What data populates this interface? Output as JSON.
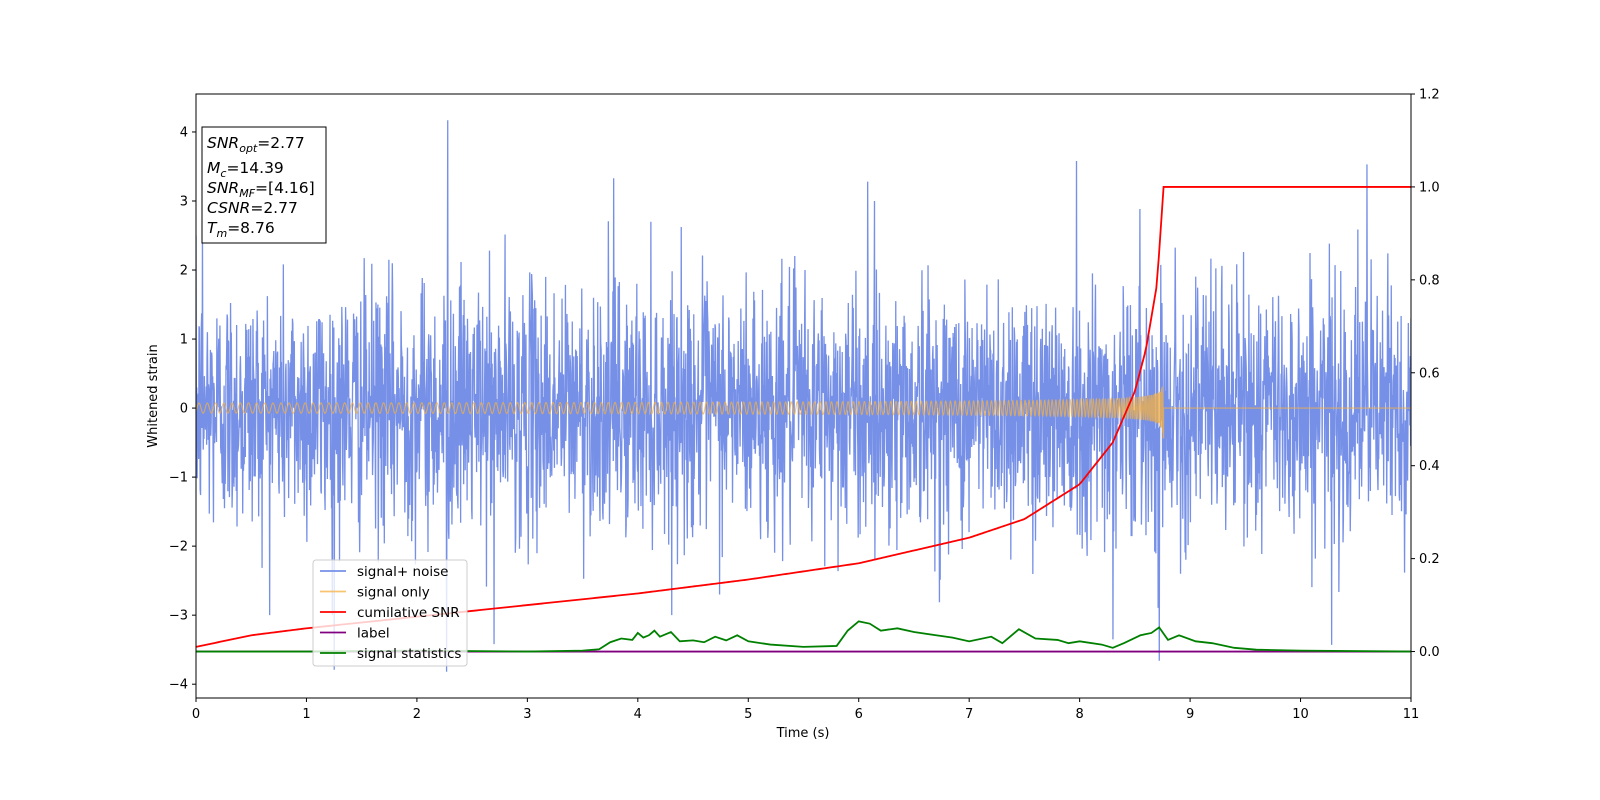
{
  "chart_data": {
    "type": "line",
    "xlabel": "Time (s)",
    "ylabel_left": "Whitened strain",
    "ylabel_right": "",
    "xlim": [
      0,
      11
    ],
    "ylim_left": [
      -4.2,
      4.55
    ],
    "ylim_right": [
      -0.1,
      1.2
    ],
    "x_ticks": [
      "0",
      "1",
      "2",
      "3",
      "4",
      "5",
      "6",
      "7",
      "8",
      "9",
      "10",
      "11"
    ],
    "y_left_ticks": [
      "4",
      "3",
      "2",
      "1",
      "0",
      "−1",
      "−2",
      "−3",
      "−4"
    ],
    "y_right_ticks": [
      "1.2",
      "1.0",
      "0.8",
      "0.6",
      "0.4",
      "0.2",
      "0.0"
    ],
    "grid": false,
    "legend_position": "lower-left",
    "info_box": {
      "lines": [
        {
          "sym": "SNR",
          "sub": "opt",
          "text": "=2.77"
        },
        {
          "sym": "M",
          "sub": "c",
          "text": "=14.39"
        },
        {
          "sym": "SNR",
          "sub": "MF",
          "text": "=[4.16]"
        },
        {
          "sym": "CSNR",
          "sub": "",
          "text": "=2.77"
        },
        {
          "sym": "T",
          "sub": "m",
          "text": "=8.76"
        }
      ]
    },
    "series": [
      {
        "name": "signal+ noise",
        "axis": "left",
        "color": "#6f8ae6",
        "kind": "noise",
        "sigma": 0.9,
        "spikes": [
          {
            "x": 2.28,
            "y": 4.17
          },
          {
            "x": 7.97,
            "y": 3.58
          },
          {
            "x": 10.6,
            "y": 3.53
          },
          {
            "x": 3.78,
            "y": 3.33
          },
          {
            "x": 6.08,
            "y": 3.28
          },
          {
            "x": 2.27,
            "y": -3.82
          },
          {
            "x": 1.25,
            "y": -3.79
          },
          {
            "x": 8.3,
            "y": -3.35
          },
          {
            "x": 10.28,
            "y": -3.43
          },
          {
            "x": 2.7,
            "y": -3.42
          },
          {
            "x": 0.06,
            "y": 2.62
          },
          {
            "x": 8.72,
            "y": -3.66
          }
        ]
      },
      {
        "name": "signal only",
        "axis": "left",
        "color": "#f5b041",
        "kind": "chirp",
        "end_time": 8.76,
        "peak_amplitude": 0.47
      },
      {
        "name": "cumilative SNR",
        "axis": "right",
        "color": "#ff0000",
        "kind": "cumulative",
        "points": [
          [
            0,
            0.01
          ],
          [
            0.5,
            0.035
          ],
          [
            1,
            0.05
          ],
          [
            2,
            0.075
          ],
          [
            3,
            0.1
          ],
          [
            4,
            0.125
          ],
          [
            5,
            0.155
          ],
          [
            6,
            0.19
          ],
          [
            7,
            0.245
          ],
          [
            7.5,
            0.285
          ],
          [
            8,
            0.36
          ],
          [
            8.3,
            0.45
          ],
          [
            8.5,
            0.56
          ],
          [
            8.6,
            0.65
          ],
          [
            8.7,
            0.79
          ],
          [
            8.76,
            1.0
          ],
          [
            11,
            1.0
          ]
        ]
      },
      {
        "name": "label",
        "axis": "right",
        "color": "#800080",
        "kind": "line",
        "points": [
          [
            0,
            0.0
          ],
          [
            11,
            0.0
          ]
        ]
      },
      {
        "name": "signal statistics",
        "axis": "right",
        "color": "#008000",
        "kind": "line",
        "points": [
          [
            0,
            0.0
          ],
          [
            1,
            0.0
          ],
          [
            2,
            0.002
          ],
          [
            3,
            0.0
          ],
          [
            3.5,
            0.002
          ],
          [
            3.65,
            0.005
          ],
          [
            3.75,
            0.02
          ],
          [
            3.85,
            0.028
          ],
          [
            3.95,
            0.025
          ],
          [
            4.0,
            0.04
          ],
          [
            4.05,
            0.03
          ],
          [
            4.1,
            0.035
          ],
          [
            4.15,
            0.045
          ],
          [
            4.2,
            0.032
          ],
          [
            4.3,
            0.042
          ],
          [
            4.38,
            0.022
          ],
          [
            4.5,
            0.024
          ],
          [
            4.6,
            0.02
          ],
          [
            4.7,
            0.032
          ],
          [
            4.8,
            0.024
          ],
          [
            4.9,
            0.035
          ],
          [
            5.0,
            0.022
          ],
          [
            5.2,
            0.015
          ],
          [
            5.5,
            0.01
          ],
          [
            5.8,
            0.012
          ],
          [
            5.9,
            0.045
          ],
          [
            6.0,
            0.065
          ],
          [
            6.1,
            0.06
          ],
          [
            6.2,
            0.045
          ],
          [
            6.35,
            0.05
          ],
          [
            6.5,
            0.042
          ],
          [
            6.7,
            0.035
          ],
          [
            6.85,
            0.03
          ],
          [
            7.0,
            0.022
          ],
          [
            7.2,
            0.032
          ],
          [
            7.3,
            0.018
          ],
          [
            7.45,
            0.048
          ],
          [
            7.6,
            0.028
          ],
          [
            7.8,
            0.025
          ],
          [
            7.9,
            0.018
          ],
          [
            8.0,
            0.022
          ],
          [
            8.2,
            0.015
          ],
          [
            8.3,
            0.008
          ],
          [
            8.4,
            0.018
          ],
          [
            8.55,
            0.035
          ],
          [
            8.65,
            0.04
          ],
          [
            8.72,
            0.052
          ],
          [
            8.8,
            0.025
          ],
          [
            8.9,
            0.035
          ],
          [
            9.05,
            0.022
          ],
          [
            9.2,
            0.018
          ],
          [
            9.4,
            0.008
          ],
          [
            9.6,
            0.004
          ],
          [
            10.0,
            0.002
          ],
          [
            11,
            0.0
          ]
        ]
      }
    ]
  }
}
